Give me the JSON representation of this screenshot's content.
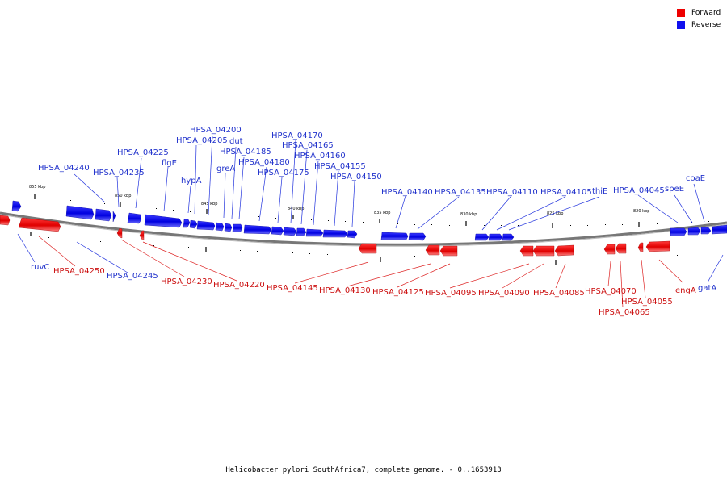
{
  "legend": {
    "forward": {
      "label": "Forward",
      "color": "#ee0000"
    },
    "reverse": {
      "label": "Reverse",
      "color": "#1010ee"
    }
  },
  "caption": "Helicobacter pylori SouthAfrica7, complete genome. - 0..1653913",
  "scale_labels": [
    "855 kbp",
    "850 kbp",
    "845 kbp",
    "840 kbp",
    "835 kbp",
    "830 kbp",
    "825 kbp",
    "820 kbp"
  ],
  "gene_labels": [
    "HPSA_04240",
    "HPSA_04235",
    "HPSA_04225",
    "flgE",
    "hypA",
    "HPSA_04205",
    "HPSA_04200",
    "greA",
    "dut",
    "HPSA_04185",
    "HPSA_04180",
    "HPSA_04175",
    "HPSA_04170",
    "HPSA_04165",
    "HPSA_04160",
    "HPSA_04155",
    "HPSA_04150",
    "HPSA_04140",
    "HPSA_04135",
    "HPSA_04110",
    "HPSA_04105",
    "thiE",
    "HPSA_04045",
    "speE",
    "coaE",
    "ruvC",
    "HPSA_04250",
    "HPSA_04245",
    "HPSA_04230",
    "HPSA_04220",
    "HPSA_04145",
    "HPSA_04130",
    "HPSA_04125",
    "HPSA_04095",
    "HPSA_04090",
    "HPSA_04085",
    "HPSA_04070",
    "HPSA_04065",
    "HPSA_04055",
    "engA",
    "gatA"
  ]
}
